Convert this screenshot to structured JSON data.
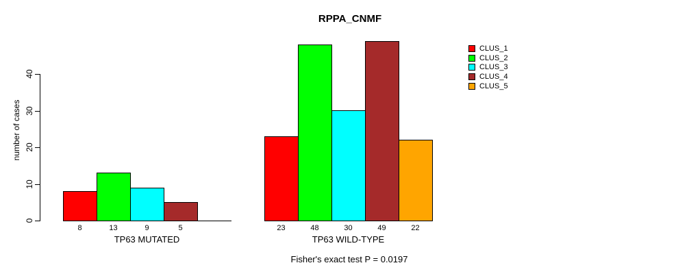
{
  "chart_data": {
    "type": "bar",
    "title": "RPPA_CNMF",
    "ylabel": "number of cases",
    "xlabel": "",
    "subtitle": "Fisher's exact test P = 0.0197",
    "ylim": [
      0,
      40
    ],
    "yticks": [
      0,
      10,
      20,
      30,
      40
    ],
    "grid": false,
    "legend_position": "right",
    "bar_border_color": "#000000",
    "categories": [
      "TP63 MUTATED",
      "TP63 WILD-TYPE"
    ],
    "series": [
      {
        "name": "CLUS_1",
        "color": "#FF0000",
        "values": [
          8,
          23
        ]
      },
      {
        "name": "CLUS_2",
        "color": "#00FF00",
        "values": [
          13,
          48
        ]
      },
      {
        "name": "CLUS_3",
        "color": "#00FFFF",
        "values": [
          9,
          30
        ]
      },
      {
        "name": "CLUS_4",
        "color": "#A52A2A",
        "values": [
          5,
          49
        ]
      },
      {
        "name": "CLUS_5",
        "color": "#FFA500",
        "values": [
          null,
          22
        ]
      }
    ]
  }
}
